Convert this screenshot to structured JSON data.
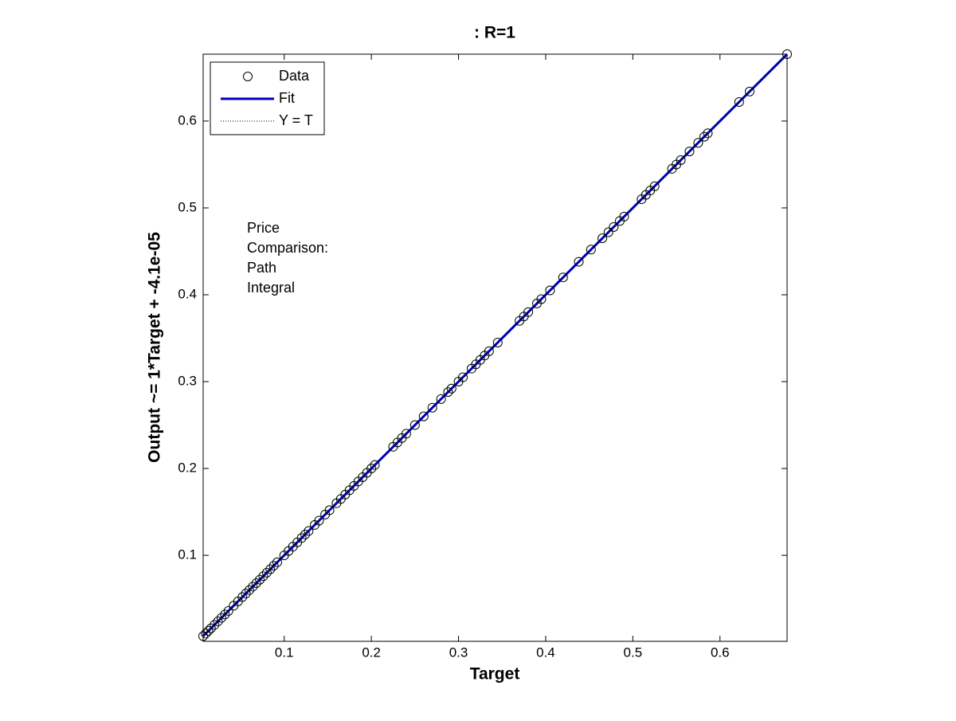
{
  "chart_data": {
    "type": "scatter",
    "title": ": R=1",
    "x_label": "Target",
    "y_label": "Output ~= 1*Target + -4.1e-05",
    "annotation": [
      "Price",
      "Comparison:",
      "Path",
      "Integral"
    ],
    "xlim": [
      0.007,
      0.677
    ],
    "ylim": [
      0.001,
      0.677
    ],
    "xticks": [
      0.1,
      0.2,
      0.3,
      0.4,
      0.5,
      0.6
    ],
    "yticks": [
      0.1,
      0.2,
      0.3,
      0.4,
      0.5,
      0.6
    ],
    "legend": "upper left",
    "series": [
      {
        "name": "Data",
        "color": "#000000",
        "marker": "circle",
        "x": [
          0.007,
          0.01,
          0.013,
          0.016,
          0.02,
          0.024,
          0.028,
          0.032,
          0.036,
          0.042,
          0.047,
          0.052,
          0.056,
          0.06,
          0.064,
          0.068,
          0.072,
          0.076,
          0.08,
          0.084,
          0.088,
          0.092,
          0.1,
          0.105,
          0.11,
          0.115,
          0.12,
          0.124,
          0.128,
          0.135,
          0.14,
          0.147,
          0.152,
          0.16,
          0.165,
          0.17,
          0.175,
          0.18,
          0.185,
          0.19,
          0.195,
          0.2,
          0.204,
          0.225,
          0.23,
          0.235,
          0.24,
          0.25,
          0.26,
          0.27,
          0.28,
          0.288,
          0.292,
          0.3,
          0.305,
          0.315,
          0.32,
          0.325,
          0.33,
          0.335,
          0.345,
          0.37,
          0.375,
          0.38,
          0.39,
          0.395,
          0.405,
          0.42,
          0.438,
          0.452,
          0.465,
          0.472,
          0.478,
          0.485,
          0.49,
          0.51,
          0.515,
          0.52,
          0.525,
          0.545,
          0.55,
          0.555,
          0.565,
          0.575,
          0.582,
          0.586,
          0.622,
          0.634,
          0.677
        ],
        "values": [
          0.007,
          0.01,
          0.013,
          0.016,
          0.02,
          0.024,
          0.028,
          0.032,
          0.036,
          0.042,
          0.047,
          0.052,
          0.056,
          0.06,
          0.064,
          0.068,
          0.072,
          0.076,
          0.08,
          0.084,
          0.088,
          0.092,
          0.1,
          0.105,
          0.11,
          0.115,
          0.12,
          0.124,
          0.128,
          0.135,
          0.14,
          0.147,
          0.152,
          0.16,
          0.165,
          0.17,
          0.175,
          0.18,
          0.185,
          0.19,
          0.195,
          0.2,
          0.204,
          0.225,
          0.23,
          0.235,
          0.24,
          0.25,
          0.26,
          0.27,
          0.28,
          0.288,
          0.292,
          0.3,
          0.305,
          0.315,
          0.32,
          0.325,
          0.33,
          0.335,
          0.345,
          0.37,
          0.375,
          0.38,
          0.39,
          0.395,
          0.405,
          0.42,
          0.438,
          0.452,
          0.465,
          0.472,
          0.478,
          0.485,
          0.49,
          0.51,
          0.515,
          0.52,
          0.525,
          0.545,
          0.55,
          0.555,
          0.565,
          0.575,
          0.582,
          0.586,
          0.622,
          0.634,
          0.677
        ]
      },
      {
        "name": "Fit",
        "color": "#0000cc",
        "line": "solid",
        "x": [
          0.007,
          0.677
        ],
        "values": [
          0.007,
          0.677
        ]
      },
      {
        "name": "Y = T",
        "color": "#000000",
        "line": "dotted",
        "x": [
          0.007,
          0.677
        ],
        "values": [
          0.007,
          0.677
        ]
      }
    ]
  }
}
